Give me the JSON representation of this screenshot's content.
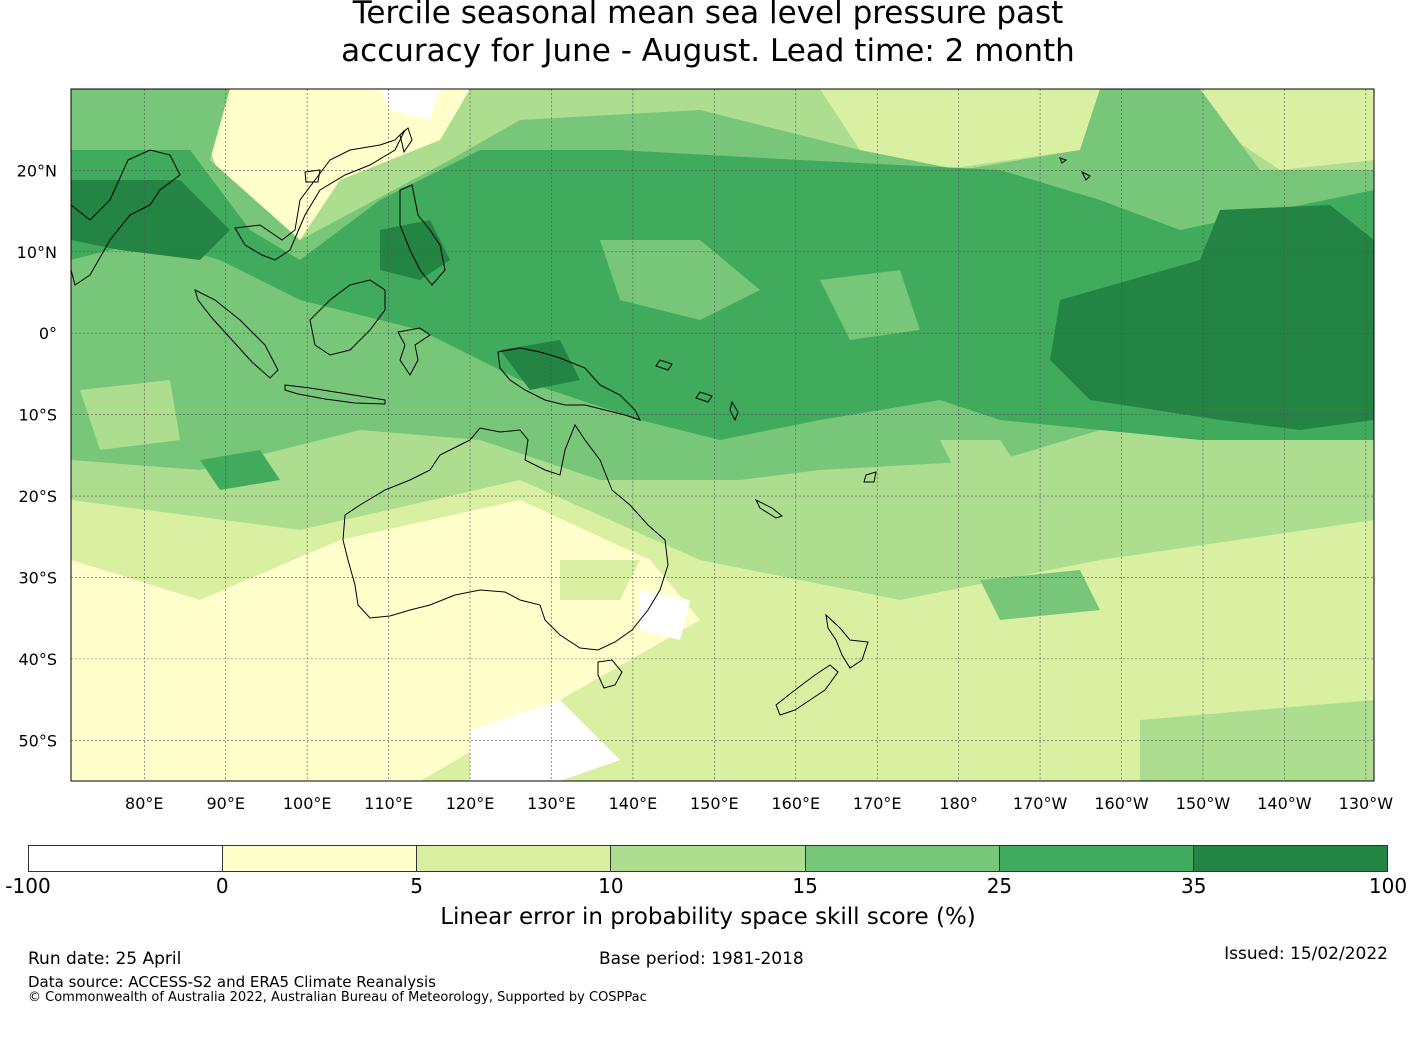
{
  "title": {
    "line1": "Tercile seasonal mean sea level pressure past",
    "line2": "accuracy for June - August. Lead time: 2 month"
  },
  "map": {
    "longitude_labels": [
      "80°E",
      "90°E",
      "100°E",
      "110°E",
      "120°E",
      "130°E",
      "140°E",
      "150°E",
      "160°E",
      "170°E",
      "180°",
      "170°W",
      "160°W",
      "150°W",
      "140°W",
      "130°W"
    ],
    "latitude_labels": [
      "20°N",
      "10°N",
      "0°",
      "10°S",
      "20°S",
      "30°S",
      "40°S",
      "50°S"
    ],
    "extent": {
      "lon_min": 71,
      "lon_max": 231,
      "lat_min": -55,
      "lat_max": 30
    },
    "gridlines": true,
    "landmasses": [
      "Australia",
      "New Guinea",
      "Borneo",
      "Sumatra",
      "Java",
      "Philippines",
      "New Zealand",
      "Indochina",
      "India",
      "Hawaii"
    ]
  },
  "legend": {
    "tick_labels": [
      "-100",
      "0",
      "5",
      "10",
      "15",
      "25",
      "35",
      "100"
    ],
    "colors": [
      "#ffffff",
      "#ffffcc",
      "#d9f0a3",
      "#addd8e",
      "#78c679",
      "#41ab5d",
      "#238443"
    ],
    "title": "Linear error in probability space skill score (%)"
  },
  "footer": {
    "run_date": "Run date: 25 April",
    "base_period": "Base period: 1981-2018",
    "issued": "Issued: 15/02/2022",
    "data_source": "Data source: ACCESS-S2 and ERA5 Climate Reanalysis",
    "copyright": "© Commonwealth of Australia 2022, Australian Bureau of Meteorology, Supported by COSPPac"
  }
}
